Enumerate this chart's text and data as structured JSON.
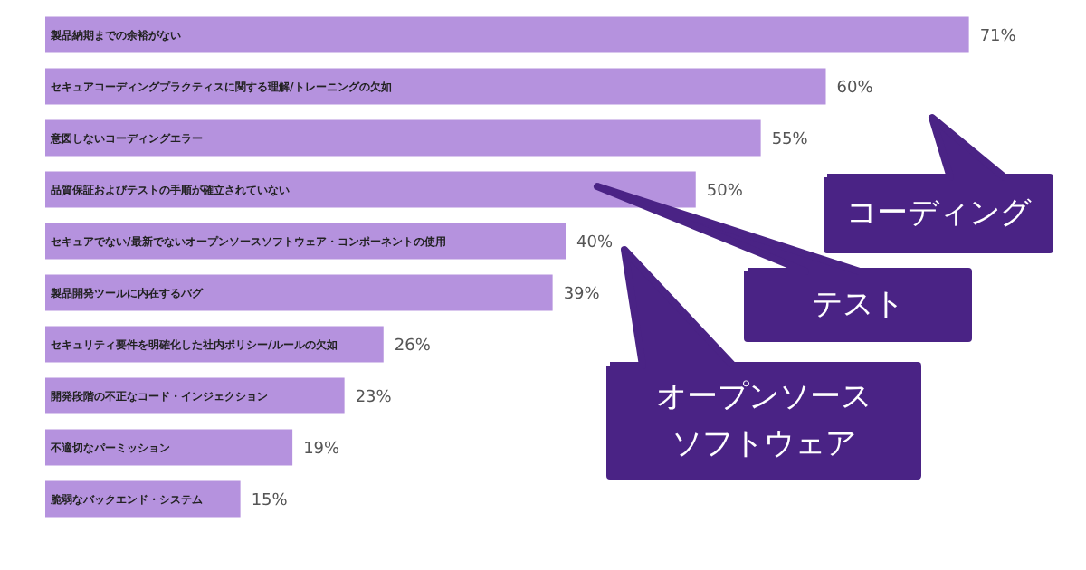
{
  "chart_data": {
    "type": "bar",
    "orientation": "horizontal",
    "categories": [
      "製品納期までの余裕がない",
      "セキュアコーディングプラクティスに関する理解/トレーニングの欠如",
      "意図しないコーディングエラー",
      "品質保証およびテストの手順が確立されていない",
      "セキュアでない/最新でないオープンソースソフトウェア・コンポーネントの使用",
      "製品開発ツールに内在するバグ",
      "セキュリティ要件を明確化した社内ポリシー/ルールの欠如",
      "開発段階の不正なコード・インジェクション",
      "不適切なパーミッション",
      "脆弱なバックエンド・システム"
    ],
    "values": [
      71,
      60,
      55,
      50,
      40,
      39,
      26,
      23,
      19,
      15
    ],
    "value_labels": [
      "71%",
      "60%",
      "55%",
      "50%",
      "40%",
      "39%",
      "26%",
      "23%",
      "19%",
      "15%"
    ],
    "color": "#b592de",
    "xlim": [
      0,
      80
    ],
    "tick_labels": false,
    "annotations": [
      "コーディング",
      "テスト",
      "オープンソース",
      "ソフトウェア"
    ]
  }
}
